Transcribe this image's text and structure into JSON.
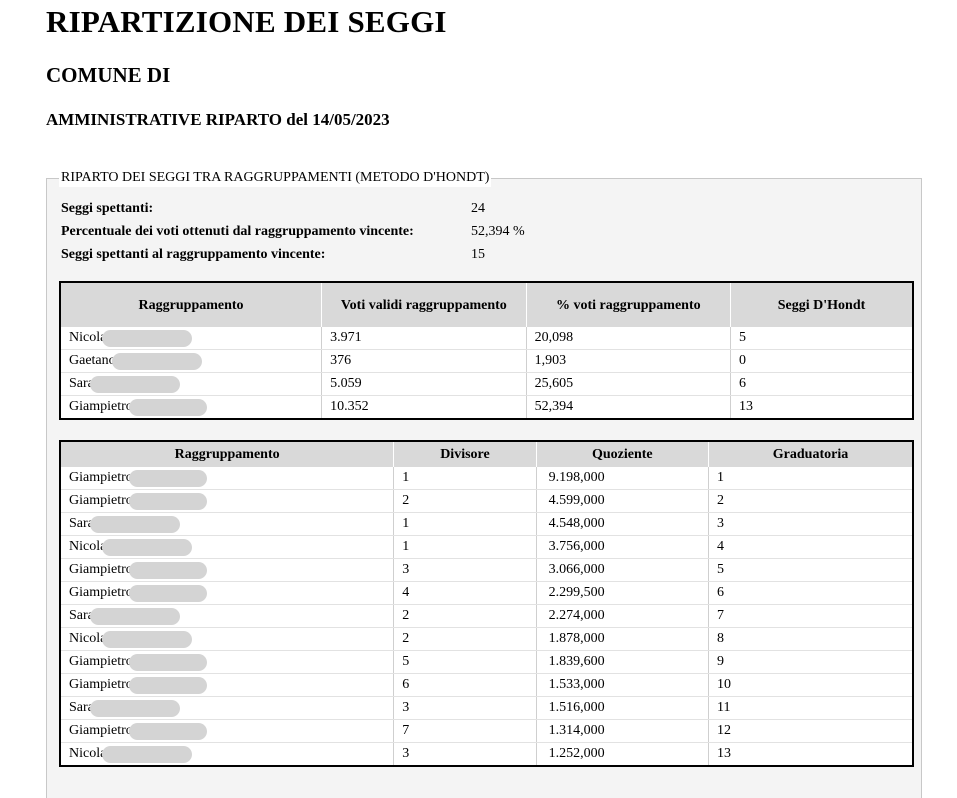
{
  "header": {
    "title": "RIPARTIZIONE DEI SEGGI",
    "comune": "COMUNE DI",
    "election": "AMMINISTRATIVE RIPARTO del 14/05/2023"
  },
  "section": {
    "legend": "RIPARTO DEI SEGGI TRA RAGGRUPPAMENTI (METODO D'HONDT)",
    "summary": [
      {
        "label": "Seggi spettanti:",
        "value": "24"
      },
      {
        "label": "Percentuale dei voti ottenuti dal raggruppamento vincente:",
        "value": "52,394 %"
      },
      {
        "label": "Seggi spettanti al raggruppamento vincente:",
        "value": "15"
      }
    ]
  },
  "table1": {
    "headers": [
      "Raggruppamento",
      "Voti validi raggruppamento",
      "% voti raggruppamento",
      "Seggi D'Hondt"
    ],
    "rows": [
      [
        "Nicola",
        "3.971",
        "20,098",
        "5"
      ],
      [
        "Gaetano",
        "376",
        "1,903",
        "0"
      ],
      [
        "Sara",
        "5.059",
        "25,605",
        "6"
      ],
      [
        "Giampietro",
        "10.352",
        "52,394",
        "13"
      ]
    ]
  },
  "table2": {
    "headers": [
      "Raggruppamento",
      "Divisore",
      "Quoziente",
      "Graduatoria"
    ],
    "rows": [
      [
        "Giampietro",
        "1",
        "9.198,000",
        "1"
      ],
      [
        "Giampietro",
        "2",
        "4.599,000",
        "2"
      ],
      [
        "Sara",
        "1",
        "4.548,000",
        "3"
      ],
      [
        "Nicola",
        "1",
        "3.756,000",
        "4"
      ],
      [
        "Giampietro",
        "3",
        "3.066,000",
        "5"
      ],
      [
        "Giampietro",
        "4",
        "2.299,500",
        "6"
      ],
      [
        "Sara",
        "2",
        "2.274,000",
        "7"
      ],
      [
        "Nicola",
        "2",
        "1.878,000",
        "8"
      ],
      [
        "Giampietro",
        "5",
        "1.839,600",
        "9"
      ],
      [
        "Giampietro",
        "6",
        "1.533,000",
        "10"
      ],
      [
        "Sara",
        "3",
        "1.516,000",
        "11"
      ],
      [
        "Giampietro",
        "7",
        "1.314,000",
        "12"
      ],
      [
        "Nicola",
        "3",
        "1.252,000",
        "13"
      ]
    ]
  }
}
